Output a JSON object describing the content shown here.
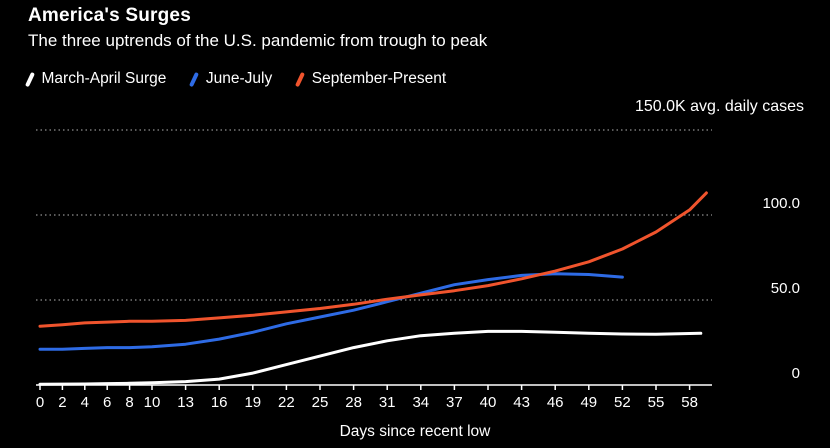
{
  "header": {
    "title": "America's Surges",
    "subtitle": "The three uptrends of the U.S. pandemic from trough to peak"
  },
  "legend": [
    {
      "label": "March-April Surge",
      "color": "#ffffff"
    },
    {
      "label": "June-July",
      "color": "#2e6be5"
    },
    {
      "label": "September-Present",
      "color": "#f0542d"
    }
  ],
  "chart_data": {
    "type": "line",
    "title": "America's Surges",
    "subtitle": "The three uptrends of the U.S. pandemic from trough to peak",
    "unit_label": "150.0K avg. daily cases",
    "xlabel": "Days since recent low",
    "xlim": [
      0,
      60
    ],
    "ylim": [
      0,
      150
    ],
    "grid": "dotted-horizontal",
    "legend_position": "top-left",
    "background": "#000000",
    "x_ticks": [
      0,
      2,
      4,
      6,
      8,
      10,
      13,
      16,
      19,
      22,
      25,
      28,
      31,
      34,
      37,
      40,
      43,
      46,
      49,
      52,
      55,
      58
    ],
    "y_gridlines": [
      150,
      100,
      50
    ],
    "y_ticks": [
      {
        "value": 100,
        "label": "100.0"
      },
      {
        "value": 50,
        "label": "50.0"
      },
      {
        "value": 0,
        "label": "0"
      }
    ],
    "series": [
      {
        "id": "march-april-surge",
        "name": "March-April Surge",
        "color": "#ffffff",
        "x": [
          0,
          2,
          4,
          6,
          8,
          10,
          13,
          16,
          19,
          22,
          25,
          28,
          31,
          34,
          37,
          40,
          43,
          46,
          49,
          52,
          55,
          58,
          59
        ],
        "y": [
          0.4,
          0.5,
          0.6,
          0.8,
          1.0,
          1.3,
          2.0,
          3.5,
          7,
          12,
          17,
          22,
          26,
          29,
          30.5,
          31.5,
          31.5,
          31,
          30.5,
          30,
          29.8,
          30.3,
          30.4
        ]
      },
      {
        "id": "june-july",
        "name": "June-July",
        "color": "#2e6be5",
        "x": [
          0,
          2,
          4,
          6,
          8,
          10,
          13,
          16,
          19,
          22,
          25,
          28,
          31,
          34,
          37,
          40,
          43,
          46,
          49,
          52
        ],
        "y": [
          21,
          21,
          21.5,
          22,
          22,
          22.5,
          24,
          27,
          31,
          36,
          40,
          44,
          49,
          54,
          59,
          62,
          64.5,
          65.5,
          65,
          63.5
        ]
      },
      {
        "id": "september-present",
        "name": "September-Present",
        "color": "#f0542d",
        "x": [
          0,
          2,
          4,
          6,
          8,
          10,
          13,
          16,
          19,
          22,
          25,
          28,
          31,
          34,
          37,
          40,
          43,
          46,
          49,
          52,
          55,
          58,
          59.5
        ],
        "y": [
          34.5,
          35.5,
          36.5,
          37,
          37.5,
          37.5,
          38,
          39.5,
          41,
          43,
          45,
          47.5,
          50.5,
          53,
          55.5,
          58.5,
          62.5,
          67,
          72.5,
          80,
          90,
          103,
          113
        ]
      }
    ]
  }
}
